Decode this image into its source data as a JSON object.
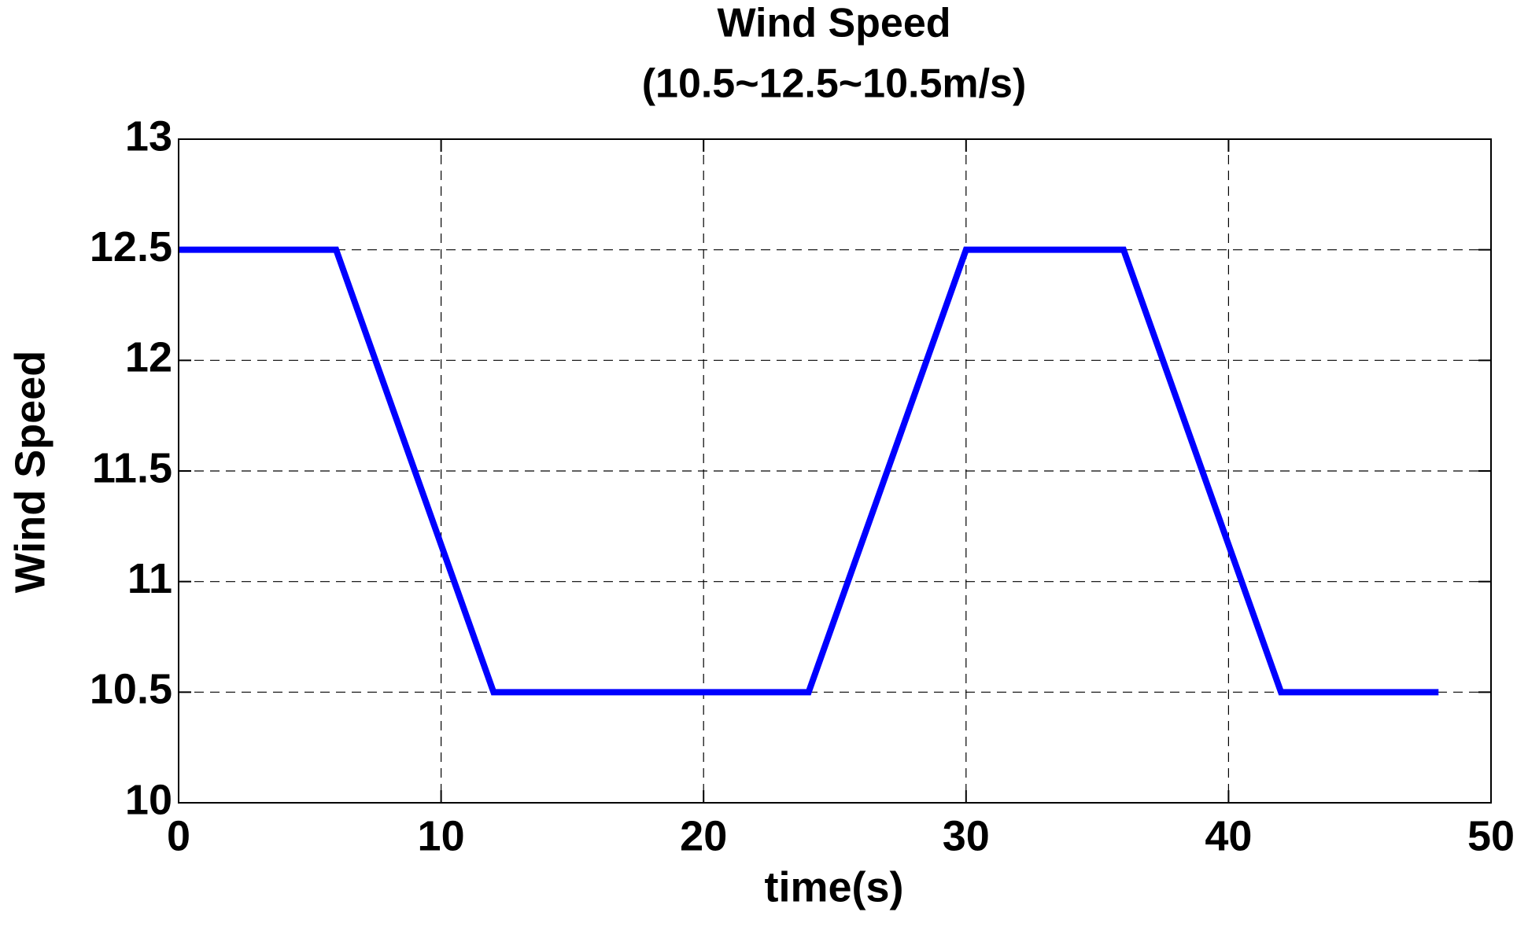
{
  "chart_data": {
    "type": "line",
    "title": "Wind Speed",
    "subtitle": "(10.5~12.5~10.5m/s)",
    "x_label": "time(s)",
    "y_label": "Wind Speed",
    "x": [
      0,
      6,
      12,
      24,
      30,
      36,
      42,
      48
    ],
    "series": [
      {
        "name": "Wind Speed",
        "color": "#0000ff",
        "values": [
          12.5,
          12.5,
          10.5,
          10.5,
          12.5,
          12.5,
          10.5,
          10.5
        ]
      }
    ],
    "xlim": [
      0,
      50
    ],
    "xticks": [
      0,
      10,
      20,
      30,
      40,
      50
    ],
    "ylim": [
      10,
      13
    ],
    "yticks": [
      10,
      10.5,
      11,
      11.5,
      12,
      12.5,
      13
    ],
    "grid": true
  }
}
